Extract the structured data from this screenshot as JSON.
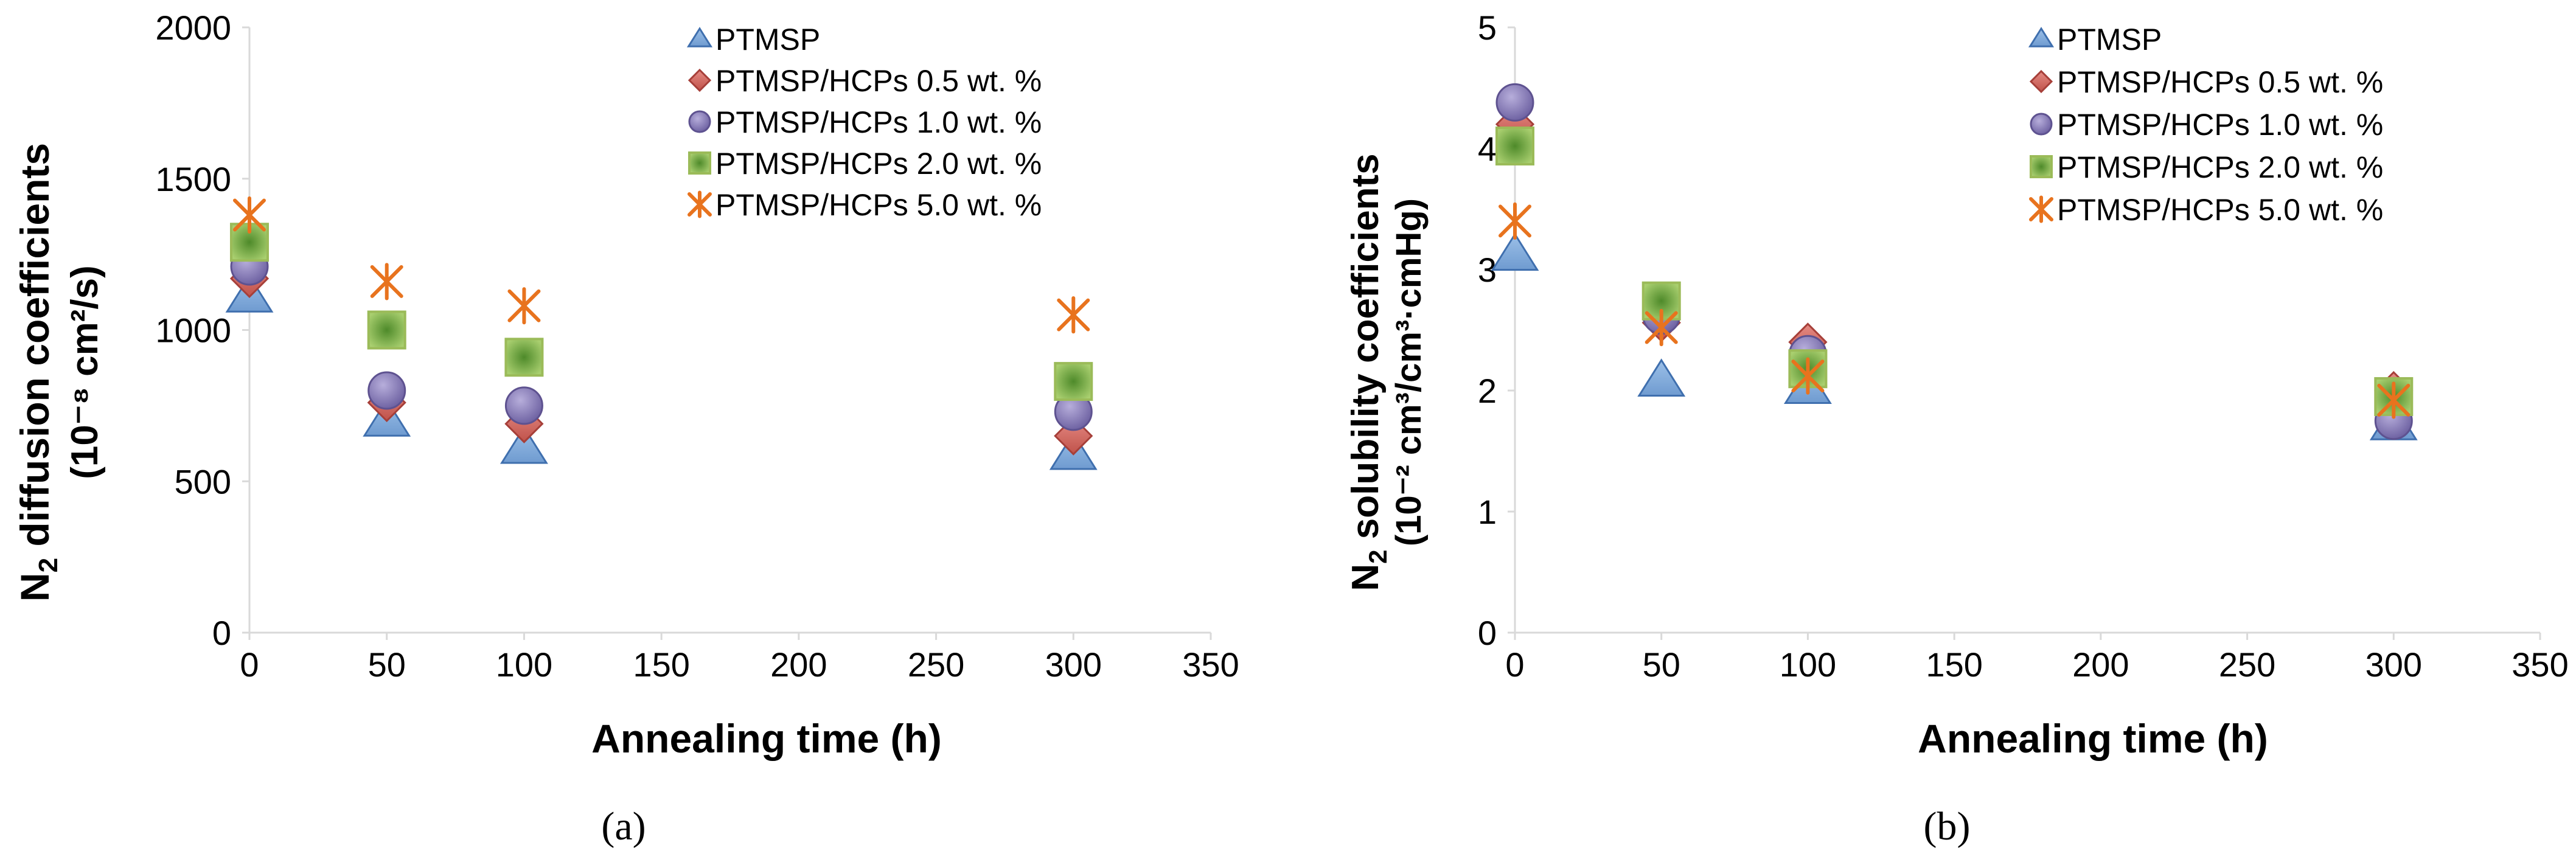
{
  "chart_data": [
    {
      "type": "scatter",
      "panel_label": "(a)",
      "ylabel_line1": "N",
      "ylabel_sub": "2",
      "ylabel_rest": " diffusion coefficients",
      "ylabel_line2": "(10⁻⁸ cm²/s)",
      "xlabel": "Annealing time (h)",
      "xlim": [
        0,
        350
      ],
      "ylim": [
        0,
        2000
      ],
      "x_ticks": [
        0,
        50,
        100,
        150,
        200,
        250,
        300,
        350
      ],
      "y_ticks": [
        0,
        500,
        1000,
        1500,
        2000
      ],
      "legend_position": "top-right",
      "series": [
        {
          "name": "PTMSP",
          "marker": "triangle",
          "x": [
            0,
            50,
            100,
            300
          ],
          "y": [
            1110,
            700,
            610,
            590
          ]
        },
        {
          "name": "PTMSP/HCPs 0.5 wt. %",
          "marker": "diamond",
          "x": [
            0,
            50,
            100,
            300
          ],
          "y": [
            1170,
            760,
            690,
            650
          ]
        },
        {
          "name": "PTMSP/HCPs 1.0 wt. %",
          "marker": "circle",
          "x": [
            0,
            50,
            100,
            300
          ],
          "y": [
            1210,
            800,
            750,
            730
          ]
        },
        {
          "name": "PTMSP/HCPs 2.0 wt. %",
          "marker": "square",
          "x": [
            0,
            50,
            100,
            300
          ],
          "y": [
            1290,
            1000,
            910,
            830
          ]
        },
        {
          "name": "PTMSP/HCPs 5.0 wt. %",
          "marker": "asterisk",
          "x": [
            0,
            50,
            100,
            300
          ],
          "y": [
            1380,
            1160,
            1080,
            1050
          ]
        }
      ]
    },
    {
      "type": "scatter",
      "panel_label": "(b)",
      "ylabel_line1": "N",
      "ylabel_sub": "2",
      "ylabel_rest": " solubility coefficients",
      "ylabel_line2": "(10⁻² cm³/cm³·cmHg)",
      "xlabel": "Annealing time (h)",
      "xlim": [
        0,
        350
      ],
      "ylim": [
        0,
        5
      ],
      "x_ticks": [
        0,
        50,
        100,
        150,
        200,
        250,
        300,
        350
      ],
      "y_ticks": [
        0,
        1,
        2,
        3,
        4,
        5
      ],
      "legend_position": "top-right",
      "series": [
        {
          "name": "PTMSP",
          "marker": "triangle",
          "x": [
            0,
            50,
            100,
            300
          ],
          "y": [
            3.12,
            2.08,
            2.02,
            1.72
          ]
        },
        {
          "name": "PTMSP/HCPs 0.5 wt. %",
          "marker": "diamond",
          "x": [
            0,
            50,
            100,
            300
          ],
          "y": [
            4.2,
            2.56,
            2.4,
            2.0
          ]
        },
        {
          "name": "PTMSP/HCPs 1.0 wt. %",
          "marker": "circle",
          "x": [
            0,
            50,
            100,
            300
          ],
          "y": [
            4.38,
            2.62,
            2.3,
            1.75
          ]
        },
        {
          "name": "PTMSP/HCPs 2.0 wt. %",
          "marker": "square",
          "x": [
            0,
            50,
            100,
            300
          ],
          "y": [
            4.02,
            2.74,
            2.18,
            1.95
          ]
        },
        {
          "name": "PTMSP/HCPs 5.0 wt. %",
          "marker": "asterisk",
          "x": [
            0,
            50,
            100,
            300
          ],
          "y": [
            3.4,
            2.52,
            2.12,
            1.92
          ]
        }
      ]
    }
  ],
  "colors": {
    "triangle_fill": "#7fa7d6",
    "triangle_stroke": "#3f6fae",
    "diamond_fill": "#d46e66",
    "diamond_stroke": "#a63f39",
    "circle_fill": "#9a8dc2",
    "circle_stroke": "#5e5290",
    "square_fill": "#79a63c",
    "square_stroke": "#9bbb59",
    "asterisk_stroke": "#e8731e",
    "axis": "#d9d9d9"
  }
}
